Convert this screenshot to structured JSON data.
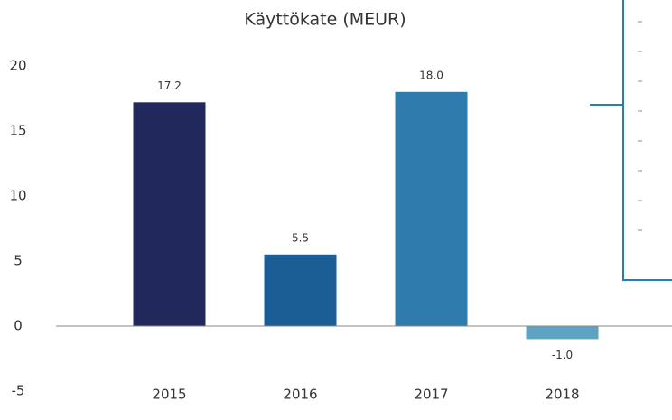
{
  "chart_data": {
    "type": "bar",
    "title": "Käyttökate (MEUR)",
    "categories": [
      "2015",
      "2016",
      "2017",
      "2018"
    ],
    "values": [
      17.2,
      5.5,
      18.0,
      -1.0
    ],
    "value_labels": [
      "17.2",
      "5.5",
      "18.0",
      "-1.0"
    ],
    "colors": [
      "#21295c",
      "#1b5e96",
      "#2f7bae",
      "#5ea3c2"
    ],
    "ylim": [
      -5,
      20
    ],
    "yticks": [
      -5,
      0,
      5,
      10,
      15,
      20
    ],
    "grid": false
  }
}
